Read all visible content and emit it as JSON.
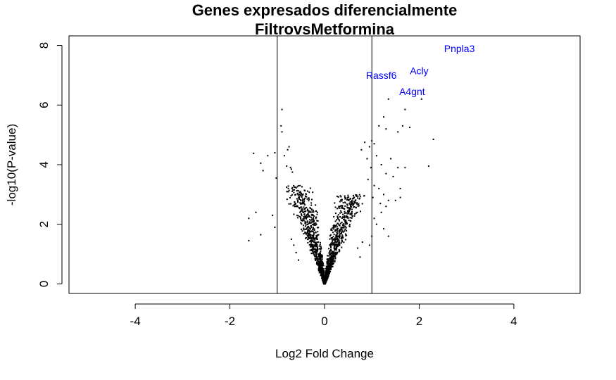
{
  "chart_data": {
    "type": "scatter",
    "title": "Genes expresados diferencialmente",
    "subtitle": "FiltrovsMetformina",
    "xlabel": "Log2 Fold Change",
    "ylabel": "-log10(P-value)",
    "xlim": [
      -5.4,
      5.4
    ],
    "ylim": [
      -0.32,
      8.32
    ],
    "xticks": [
      -4,
      -2,
      0,
      2,
      4
    ],
    "yticks": [
      0,
      2,
      4,
      6,
      8
    ],
    "grid": false,
    "vlines": [
      -1,
      1
    ],
    "point_color": "#000000",
    "label_color": "#0000ff",
    "labeled_genes": [
      {
        "name": "Pnpla3",
        "x": 2.85,
        "y": 7.9
      },
      {
        "name": "Acly",
        "x": 2.0,
        "y": 7.15
      },
      {
        "name": "Rassf6",
        "x": 1.2,
        "y": 7.0
      },
      {
        "name": "A4gnt",
        "x": 1.85,
        "y": 6.45
      }
    ],
    "outlier_points": [
      [
        -1.6,
        2.2
      ],
      [
        -1.6,
        1.45
      ],
      [
        -1.45,
        2.4
      ],
      [
        -1.35,
        1.65
      ],
      [
        -1.5,
        4.38
      ],
      [
        -1.35,
        4.05
      ],
      [
        -1.2,
        4.3
      ],
      [
        -1.05,
        4.4
      ],
      [
        -1.3,
        3.8
      ],
      [
        -1.02,
        3.55
      ],
      [
        -0.9,
        5.85
      ],
      [
        -0.92,
        5.3
      ],
      [
        -0.9,
        5.1
      ],
      [
        -0.75,
        4.6
      ],
      [
        -0.78,
        4.5
      ],
      [
        -0.85,
        4.3
      ],
      [
        -0.8,
        3.95
      ],
      [
        -0.72,
        3.9
      ],
      [
        -0.7,
        3.85
      ],
      [
        -0.68,
        3.75
      ],
      [
        1.0,
        4.8
      ],
      [
        1.05,
        4.7
      ],
      [
        1.15,
        5.3
      ],
      [
        1.25,
        5.6
      ],
      [
        1.3,
        5.2
      ],
      [
        1.35,
        6.2
      ],
      [
        1.55,
        5.1
      ],
      [
        1.65,
        5.3
      ],
      [
        1.7,
        5.85
      ],
      [
        1.8,
        5.25
      ],
      [
        2.05,
        6.2
      ],
      [
        2.3,
        4.85
      ],
      [
        2.2,
        3.95
      ],
      [
        1.55,
        3.9
      ],
      [
        1.7,
        3.9
      ],
      [
        1.45,
        3.6
      ],
      [
        1.3,
        3.7
      ],
      [
        1.2,
        4.0
      ],
      [
        1.6,
        3.2
      ],
      [
        1.6,
        2.9
      ],
      [
        1.5,
        2.8
      ],
      [
        1.35,
        2.8
      ],
      [
        1.25,
        1.85
      ],
      [
        1.35,
        1.6
      ],
      [
        1.1,
        2.0
      ],
      [
        1.0,
        1.6
      ],
      [
        1.05,
        2.2
      ],
      [
        1.2,
        2.4
      ],
      [
        1.15,
        3.2
      ],
      [
        1.25,
        3.0
      ],
      [
        1.4,
        4.2
      ],
      [
        1.1,
        4.3
      ],
      [
        1.3,
        2.6
      ],
      [
        1.02,
        2.9
      ],
      [
        0.95,
        4.6
      ],
      [
        0.85,
        4.75
      ],
      [
        0.78,
        4.5
      ],
      [
        0.9,
        4.2
      ],
      [
        -1.1,
        2.3
      ],
      [
        -1.05,
        1.9
      ],
      [
        0.98,
        3.9
      ],
      [
        0.92,
        3.5
      ],
      [
        1.05,
        3.3
      ],
      [
        1.18,
        2.7
      ],
      [
        0.7,
        1.2
      ],
      [
        0.8,
        1.4
      ],
      [
        0.95,
        1.3
      ],
      [
        0.75,
        0.9
      ],
      [
        -0.6,
        1.05
      ],
      [
        -0.55,
        0.8
      ],
      [
        -0.7,
        1.5
      ],
      [
        -0.65,
        1.3
      ]
    ]
  }
}
